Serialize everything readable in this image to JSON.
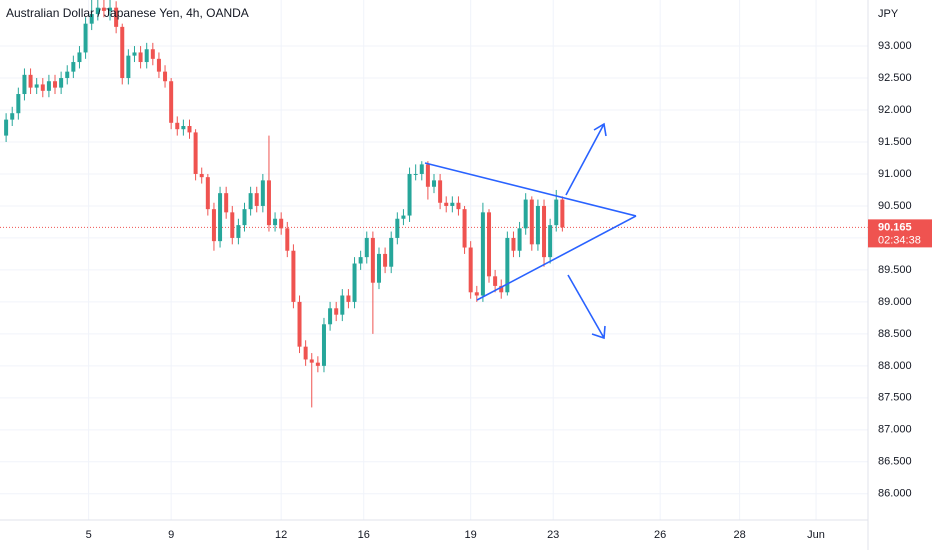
{
  "chart_data": {
    "type": "candlestick",
    "title": "Australian Dollar / Japanese Yen, 4h, OANDA",
    "y_axis_label": "JPY",
    "last_price": 90.165,
    "countdown": "02:34:38",
    "up_color": "#26a69a",
    "down_color": "#ef5350",
    "grid": true,
    "xlim": [
      -1,
      141
    ],
    "xticks": [
      {
        "value": 13.5,
        "label": "5"
      },
      {
        "value": 27,
        "label": "9"
      },
      {
        "value": 45,
        "label": "12"
      },
      {
        "value": 58.5,
        "label": "16"
      },
      {
        "value": 76,
        "label": "19"
      },
      {
        "value": 89.5,
        "label": "23"
      },
      {
        "value": 107,
        "label": "26"
      },
      {
        "value": 120,
        "label": "28"
      },
      {
        "value": 132.5,
        "label": "Jun"
      }
    ],
    "ylim": [
      85.59,
      93.72
    ],
    "yticks": [
      {
        "value": 86,
        "label": "86.000"
      },
      {
        "value": 86.5,
        "label": "86.500"
      },
      {
        "value": 87,
        "label": "87.000"
      },
      {
        "value": 87.5,
        "label": "87.500"
      },
      {
        "value": 88,
        "label": "88.000"
      },
      {
        "value": 88.5,
        "label": "88.500"
      },
      {
        "value": 89,
        "label": "89.000"
      },
      {
        "value": 89.5,
        "label": "89.500"
      },
      {
        "value": 90,
        "label": "90.000"
      },
      {
        "value": 90.5,
        "label": "90.500"
      },
      {
        "value": 91,
        "label": "91.000"
      },
      {
        "value": 91.5,
        "label": "91.500"
      },
      {
        "value": 92,
        "label": "92.000"
      },
      {
        "value": 92.5,
        "label": "92.500"
      },
      {
        "value": 93,
        "label": "93.000"
      }
    ],
    "open": [
      91.6,
      91.85,
      91.95,
      92.25,
      92.55,
      92.35,
      92.4,
      92.3,
      92.45,
      92.35,
      92.5,
      92.6,
      92.75,
      92.9,
      93.35,
      93.5,
      93.6,
      93.55,
      93.6,
      93.3,
      92.5,
      92.85,
      92.9,
      92.75,
      92.95,
      92.8,
      92.6,
      92.45,
      91.8,
      91.7,
      91.75,
      91.65,
      91.0,
      90.95,
      90.45,
      89.95,
      90.7,
      90.4,
      90.0,
      90.2,
      90.45,
      90.7,
      90.5,
      90.9,
      90.2,
      90.3,
      90.15,
      89.8,
      89.0,
      88.3,
      88.1,
      88.05,
      88.0,
      88.65,
      88.9,
      88.8,
      89.1,
      89.0,
      89.6,
      89.7,
      90.0,
      89.3,
      89.75,
      89.55,
      90.0,
      90.3,
      90.35,
      91.0,
      91.0,
      91.15,
      90.8,
      90.9,
      90.55,
      90.5,
      90.55,
      90.45,
      89.85,
      89.15,
      89.1,
      90.4,
      89.4,
      89.25,
      89.15,
      90.0,
      89.8,
      90.15,
      90.6,
      89.9,
      90.5,
      89.7,
      90.2,
      90.6
    ],
    "high": [
      91.95,
      92.05,
      92.35,
      92.65,
      92.65,
      92.5,
      92.5,
      92.55,
      92.55,
      92.6,
      92.7,
      92.85,
      93.0,
      93.45,
      93.75,
      93.8,
      93.75,
      93.8,
      93.7,
      93.35,
      92.95,
      93.0,
      93.0,
      93.05,
      93.05,
      92.9,
      92.7,
      92.5,
      91.9,
      91.85,
      91.85,
      91.7,
      91.1,
      91.0,
      90.55,
      90.8,
      90.8,
      90.5,
      90.3,
      90.55,
      90.8,
      90.8,
      91.0,
      91.6,
      90.4,
      90.4,
      90.25,
      89.9,
      89.1,
      88.4,
      88.2,
      88.15,
      88.75,
      89.0,
      89.0,
      89.2,
      89.2,
      89.7,
      89.8,
      90.1,
      90.1,
      89.85,
      89.85,
      90.1,
      90.4,
      90.45,
      91.1,
      91.15,
      91.2,
      91.2,
      91.0,
      91.0,
      90.65,
      90.65,
      90.65,
      90.5,
      89.95,
      89.25,
      90.55,
      90.45,
      89.5,
      89.35,
      90.1,
      90.1,
      90.25,
      90.7,
      90.65,
      90.6,
      90.6,
      90.3,
      90.75,
      90.65
    ],
    "low": [
      91.5,
      91.75,
      91.85,
      92.15,
      92.25,
      92.25,
      92.2,
      92.2,
      92.25,
      92.25,
      92.4,
      92.5,
      92.65,
      92.8,
      93.25,
      93.4,
      93.45,
      93.4,
      93.2,
      92.4,
      92.4,
      92.75,
      92.65,
      92.65,
      92.7,
      92.5,
      92.35,
      91.7,
      91.6,
      91.6,
      91.55,
      90.9,
      90.85,
      90.35,
      89.8,
      89.85,
      90.3,
      89.9,
      89.9,
      90.1,
      90.35,
      90.4,
      90.4,
      90.1,
      90.1,
      90.05,
      89.7,
      88.9,
      88.2,
      88.0,
      87.35,
      87.9,
      87.9,
      88.55,
      88.7,
      88.7,
      88.9,
      88.9,
      89.5,
      89.6,
      88.5,
      89.2,
      89.45,
      89.45,
      89.9,
      90.2,
      90.25,
      90.9,
      90.9,
      90.6,
      90.7,
      90.45,
      90.4,
      90.4,
      90.35,
      89.75,
      89.05,
      89.0,
      89.0,
      89.3,
      89.15,
      89.05,
      89.1,
      89.7,
      89.7,
      90.05,
      89.8,
      89.8,
      89.55,
      89.6,
      90.1,
      90.1
    ],
    "close": [
      91.85,
      91.95,
      92.25,
      92.55,
      92.35,
      92.4,
      92.3,
      92.45,
      92.35,
      92.5,
      92.6,
      92.75,
      92.9,
      93.35,
      93.5,
      93.6,
      93.55,
      93.6,
      93.3,
      92.5,
      92.85,
      92.9,
      92.75,
      92.95,
      92.8,
      92.6,
      92.45,
      91.8,
      91.7,
      91.75,
      91.65,
      91.0,
      90.95,
      90.45,
      89.95,
      90.7,
      90.4,
      90.0,
      90.2,
      90.45,
      90.7,
      90.5,
      90.9,
      90.2,
      90.3,
      90.15,
      89.8,
      89.0,
      88.3,
      88.1,
      88.05,
      88.0,
      88.65,
      88.9,
      88.8,
      89.1,
      89.0,
      89.6,
      89.7,
      90.0,
      89.3,
      89.75,
      89.55,
      90.0,
      90.3,
      90.35,
      91.0,
      91.0,
      91.15,
      90.8,
      90.9,
      90.55,
      90.5,
      90.55,
      90.45,
      89.85,
      89.15,
      89.1,
      90.4,
      89.4,
      89.25,
      89.15,
      90.0,
      89.8,
      90.15,
      90.6,
      89.9,
      90.5,
      89.7,
      90.2,
      90.6,
      90.165
    ]
  }
}
